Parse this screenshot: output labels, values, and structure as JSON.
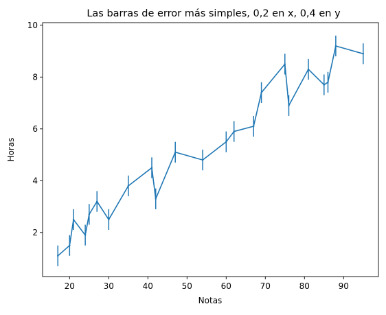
{
  "chart_data": {
    "type": "line",
    "title": "Las barras de error más simples, 0,2 en x, 0,4 en y",
    "xlabel": "Notas",
    "ylabel": "Horas",
    "xlim": [
      13.1,
      98.9
    ],
    "ylim": [
      0.3,
      10.1
    ],
    "xticks": [
      20,
      30,
      40,
      50,
      60,
      70,
      80,
      90
    ],
    "yticks": [
      2,
      4,
      6,
      8,
      10
    ],
    "grid": false,
    "color": "#1f77b4",
    "xerr": 0.2,
    "yerr": 0.4,
    "series": [
      {
        "x": [
          17,
          20,
          21,
          24,
          25,
          27,
          30,
          35,
          41,
          42,
          47,
          54,
          60,
          62,
          67,
          69,
          75,
          76,
          81,
          85,
          86,
          88,
          95
        ],
        "y": [
          1.1,
          1.5,
          2.5,
          1.9,
          2.7,
          3.2,
          2.5,
          3.8,
          4.5,
          3.3,
          5.1,
          4.8,
          5.5,
          5.9,
          6.1,
          7.4,
          8.5,
          6.9,
          8.3,
          7.7,
          7.8,
          9.2,
          8.9
        ]
      }
    ]
  }
}
